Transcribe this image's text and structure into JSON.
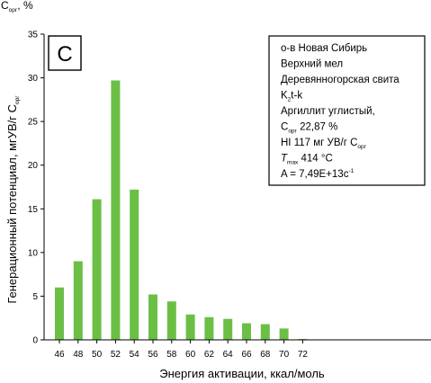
{
  "chart_data": {
    "type": "bar",
    "panel_label": "C",
    "corner_unit": {
      "main": "C",
      "sub": "орг",
      "rest": ", %"
    },
    "xlabel": "Энергия активации, ккал/моль",
    "ylabel": {
      "main": "Генерационный потенциал, мгУВ/г C",
      "sub": "орг"
    },
    "ylim": [
      0,
      35
    ],
    "yticks": [
      0,
      5,
      10,
      15,
      20,
      25,
      30,
      35
    ],
    "categories": [
      "46",
      "48",
      "50",
      "52",
      "54",
      "56",
      "58",
      "60",
      "62",
      "64",
      "66",
      "68",
      "70",
      "72"
    ],
    "values": [
      6.0,
      9.0,
      16.1,
      29.7,
      17.2,
      5.2,
      4.4,
      2.9,
      2.6,
      2.4,
      1.9,
      1.8,
      1.3,
      0.1
    ],
    "grid": false,
    "bar_color": "#6bbf45",
    "info_box": [
      {
        "text": "о-в Новая Сибирь"
      },
      {
        "text": "Верхний мел"
      },
      {
        "text": "Деревянногорская свита"
      },
      {
        "text": "K",
        "sub": "2",
        "rest": "t-k"
      },
      {
        "text": "Аргиллит углистый,"
      },
      {
        "text": "C",
        "sub": "орг",
        "rest": " 22,87 %"
      },
      {
        "text": "HI  117 мг УВ/г C",
        "sub": "орг",
        "rest": ""
      },
      {
        "text": "T",
        "sub": "max",
        "rest": " 414 °C",
        "italic": true
      },
      {
        "text": "A = 7,49E+13c",
        "sup": "-1",
        "rest": ""
      }
    ]
  }
}
